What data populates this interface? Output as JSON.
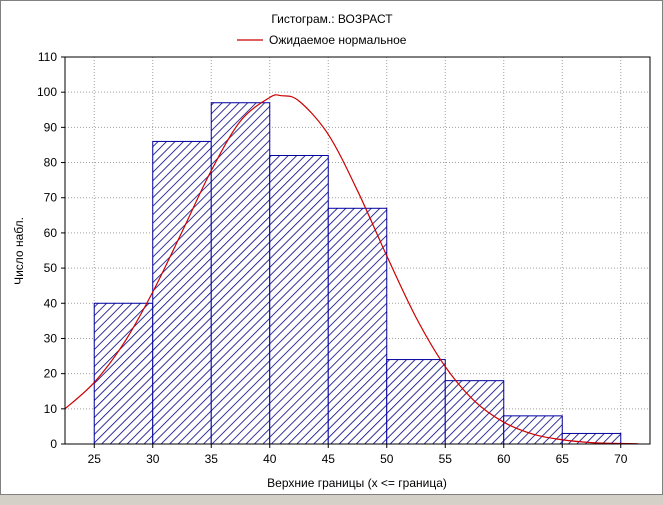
{
  "chart_data": {
    "type": "bar",
    "title": "Гистограм.: ВОЗРАСТ",
    "xlabel": "Верхние границы (x <= граница)",
    "ylabel": "Число набл.",
    "legend": {
      "label": "Ожидаемое нормальное",
      "placement": "top-center"
    },
    "x_ticks": [
      "25",
      "30",
      "35",
      "40",
      "45",
      "50",
      "55",
      "60",
      "65",
      "70"
    ],
    "y_ticks": [
      "0",
      "10",
      "20",
      "30",
      "40",
      "50",
      "60",
      "70",
      "80",
      "90",
      "100",
      "110"
    ],
    "xlim": [
      22.5,
      72.5
    ],
    "ylim": [
      0,
      110
    ],
    "grid": true,
    "bins": [
      {
        "from": 25,
        "to": 30,
        "value": 40
      },
      {
        "from": 30,
        "to": 35,
        "value": 86
      },
      {
        "from": 35,
        "to": 40,
        "value": 97
      },
      {
        "from": 40,
        "to": 45,
        "value": 82
      },
      {
        "from": 45,
        "to": 50,
        "value": 67
      },
      {
        "from": 50,
        "to": 55,
        "value": 24
      },
      {
        "from": 55,
        "to": 60,
        "value": 18
      },
      {
        "from": 60,
        "to": 65,
        "value": 8
      },
      {
        "from": 65,
        "to": 70,
        "value": 3
      }
    ],
    "expected_normal": {
      "x": [
        22.5,
        25,
        27.5,
        30,
        32.5,
        35,
        37.5,
        40,
        41,
        42.5,
        45,
        47.5,
        50,
        52.5,
        55,
        57.5,
        60,
        62.5,
        65,
        67.5,
        70,
        71.5
      ],
      "y": [
        10,
        17.5,
        28.5,
        43.2,
        60.3,
        77.7,
        91.8,
        98.5,
        99.0,
        97.5,
        88.0,
        72.0,
        53.5,
        36.0,
        22.0,
        12.2,
        6.2,
        2.8,
        1.2,
        0.4,
        0.15,
        0.05
      ]
    },
    "colors": {
      "bar_edge": "#0000a0",
      "bar_hatch": "#00007f",
      "curve": "#cc0000",
      "grid": "#a0a0a0"
    }
  }
}
